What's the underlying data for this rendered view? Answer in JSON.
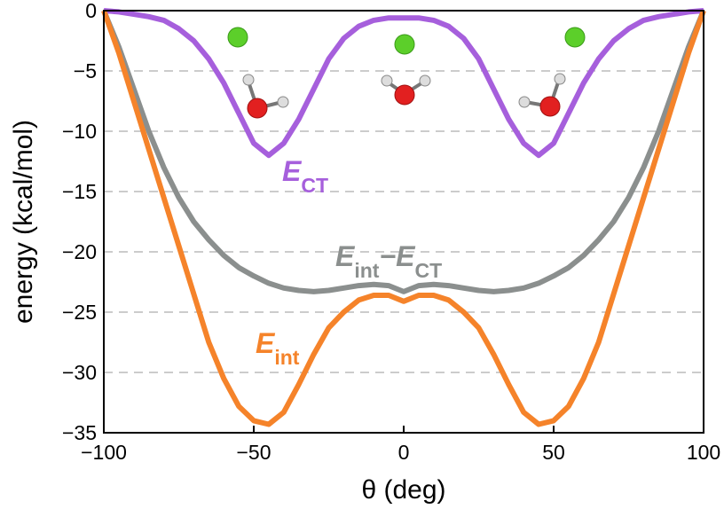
{
  "chart_data": {
    "type": "line",
    "xlabel": "θ (deg)",
    "ylabel": "energy (kcal/mol)",
    "x": [
      -100,
      -95,
      -90,
      -85,
      -80,
      -75,
      -70,
      -65,
      -60,
      -55,
      -50,
      -45,
      -40,
      -35,
      -30,
      -25,
      -20,
      -15,
      -10,
      -5,
      0,
      5,
      10,
      15,
      20,
      25,
      30,
      35,
      40,
      45,
      50,
      55,
      60,
      65,
      70,
      75,
      80,
      85,
      90,
      95,
      100
    ],
    "series": [
      {
        "color": "#a65fdc",
        "label": [
          {
            "text": "E",
            "sub": false
          },
          {
            "text": "CT",
            "sub": true
          }
        ],
        "values": [
          0,
          -0.1,
          -0.3,
          -0.5,
          -0.8,
          -1.5,
          -2.5,
          -4,
          -6,
          -8.5,
          -11,
          -12,
          -11,
          -9,
          -6.5,
          -4,
          -2.3,
          -1.3,
          -0.8,
          -0.6,
          -0.6,
          -0.6,
          -0.8,
          -1.3,
          -2.3,
          -4,
          -6.5,
          -9,
          -11,
          -12,
          -11,
          -8.5,
          -6,
          -4,
          -2.5,
          -1.5,
          -0.8,
          -0.5,
          -0.3,
          -0.1,
          0
        ]
      },
      {
        "color": "#8b8f8e",
        "label": [
          {
            "text": "E",
            "sub": false
          },
          {
            "text": "int",
            "sub": true
          },
          {
            "text": "−",
            "sub": false
          },
          {
            "text": "E",
            "sub": false
          },
          {
            "text": "CT",
            "sub": true
          }
        ],
        "values": [
          0,
          -3,
          -6.5,
          -10,
          -13,
          -15.5,
          -17.5,
          -19,
          -20.3,
          -21.3,
          -22,
          -22.6,
          -23,
          -23.2,
          -23.3,
          -23.2,
          -23,
          -22.8,
          -22.7,
          -22.8,
          -23.3,
          -22.8,
          -22.7,
          -22.8,
          -23,
          -23.2,
          -23.3,
          -23.2,
          -23,
          -22.6,
          -22,
          -21.3,
          -20.3,
          -19,
          -17.5,
          -15.5,
          -13,
          -10,
          -6.5,
          -3,
          0
        ]
      },
      {
        "color": "#f5832a",
        "label": [
          {
            "text": "E",
            "sub": false
          },
          {
            "text": "int",
            "sub": true
          }
        ],
        "values": [
          0,
          -3.5,
          -7.5,
          -11.5,
          -15.5,
          -19.5,
          -23.5,
          -27.5,
          -30.5,
          -32.8,
          -34,
          -34.3,
          -33.3,
          -31,
          -28.5,
          -26.3,
          -25,
          -24,
          -23.6,
          -23.6,
          -24.1,
          -23.6,
          -23.6,
          -24,
          -25,
          -26.3,
          -28.5,
          -31,
          -33.3,
          -34.3,
          -34,
          -32.8,
          -30.5,
          -27.5,
          -23.5,
          -19.5,
          -15.5,
          -11.5,
          -7.5,
          -3.5,
          0
        ]
      }
    ],
    "xlim": [
      -100,
      100
    ],
    "xticks": [
      {
        "value": -100,
        "label": "−100"
      },
      {
        "value": -50,
        "label": "−50"
      },
      0,
      50,
      100
    ],
    "ylim": [
      -35,
      0
    ],
    "yticks": [
      {
        "value": -35,
        "label": "−35"
      },
      {
        "value": -30,
        "label": "−30"
      },
      {
        "value": -25,
        "label": "−25"
      },
      {
        "value": -20,
        "label": "−20"
      },
      {
        "value": -15,
        "label": "−15"
      },
      {
        "value": -10,
        "label": "−10"
      },
      {
        "value": -5,
        "label": "−5"
      },
      0
    ],
    "grid": true
  }
}
